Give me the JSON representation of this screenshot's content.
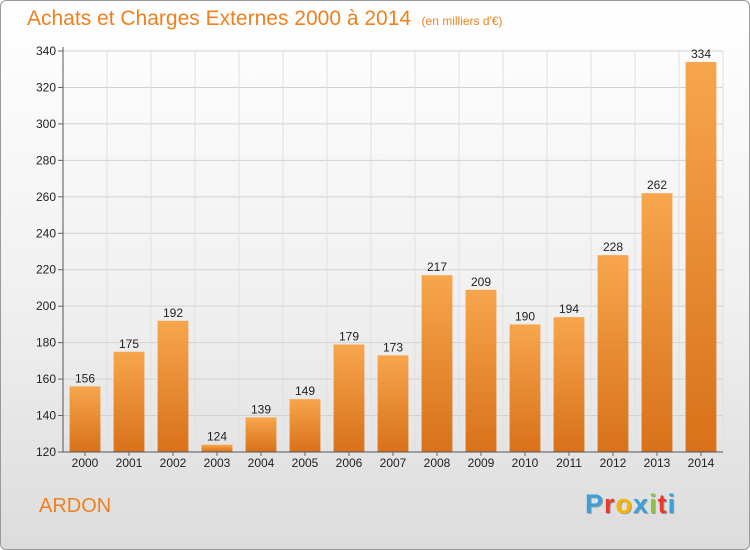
{
  "header": {
    "title": "Achats et Charges Externes 2000 à 2014",
    "unit": "(en milliers d'€)"
  },
  "footer": {
    "commune": "ARDON",
    "logo_text": "Proxiti",
    "logo_colors": [
      "#3aa0d8",
      "#e83a2a",
      "#f7b500",
      "#3aa0d8",
      "#8ac43f",
      "#e83a2a",
      "#3aa0d8"
    ]
  },
  "colors": {
    "bar_light": "#f7a64d",
    "bar_dark": "#d8711a",
    "accent": "#f0801e"
  },
  "chart_data": {
    "type": "bar",
    "title": "Achats et Charges Externes 2000 à 2014",
    "subtitle": "(en milliers d'€)",
    "categories": [
      "2000",
      "2001",
      "2002",
      "2003",
      "2004",
      "2005",
      "2006",
      "2007",
      "2008",
      "2009",
      "2010",
      "2011",
      "2012",
      "2013",
      "2014"
    ],
    "values": [
      156,
      175,
      192,
      124,
      139,
      149,
      179,
      173,
      217,
      209,
      190,
      194,
      228,
      262,
      334
    ],
    "ylim": [
      120,
      340
    ],
    "yticks": [
      120,
      140,
      160,
      180,
      200,
      220,
      240,
      260,
      280,
      300,
      320,
      340
    ],
    "grid": true,
    "data_labels": true
  }
}
